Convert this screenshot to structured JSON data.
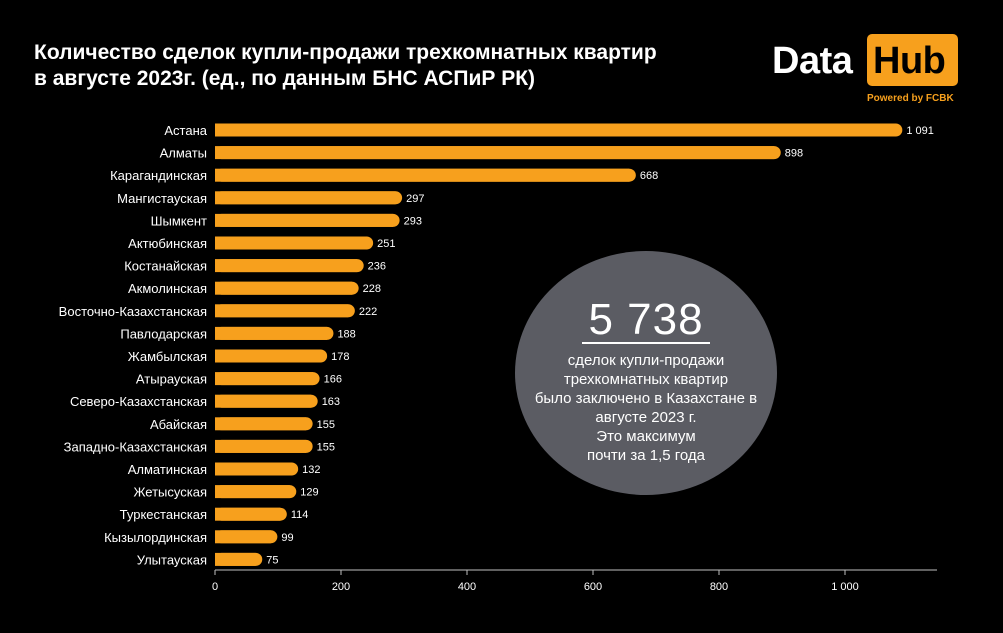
{
  "title": {
    "line1": "Количество сделок купли-продажи трехкомнатных квартир",
    "line2": "в августе 2023г.  (ед., по данным БНС АСПиР РК)"
  },
  "logo": {
    "data": "Data",
    "hub": "Hub",
    "powered": "Powered by FCBK"
  },
  "callout": {
    "number": "5 738",
    "lines": [
      "сделок купли-продажи",
      "трехкомнатных квартир",
      "было заключено в Казахстане в",
      "августе 2023 г.",
      "Это максимум",
      "почти за 1,5 года"
    ]
  },
  "colors": {
    "bar": "#f7a01d",
    "background": "#000000",
    "callout": "#5b5c63"
  },
  "chart_data": {
    "type": "bar",
    "orientation": "horizontal",
    "categories": [
      "Астана",
      "Алматы",
      "Карагандинская",
      "Мангистауская",
      "Шымкент",
      "Актюбинская",
      "Костанайская",
      "Акмолинская",
      "Восточно-Казахстанская",
      "Павлодарская",
      "Жамбылская",
      "Атырауская",
      "Северо-Казахстанская",
      "Абайская",
      "Западно-Казахстанская",
      "Алматинская",
      "Жетысуская",
      "Туркестанская",
      "Кызылординская",
      "Улытауская"
    ],
    "values": [
      1091,
      898,
      668,
      297,
      293,
      251,
      236,
      228,
      222,
      188,
      178,
      166,
      163,
      155,
      155,
      132,
      129,
      114,
      99,
      75
    ],
    "data_labels": [
      "1 091",
      "898",
      "668",
      "297",
      "293",
      "251",
      "236",
      "228",
      "222",
      "188",
      "178",
      "166",
      "163",
      "155",
      "155",
      "132",
      "129",
      "114",
      "99",
      "75"
    ],
    "xticks": [
      0,
      200,
      400,
      600,
      800,
      1000
    ],
    "xtick_labels": [
      "0",
      "200",
      "400",
      "600",
      "800",
      "1 000"
    ],
    "xlim": [
      0,
      1140
    ],
    "grid": false
  }
}
